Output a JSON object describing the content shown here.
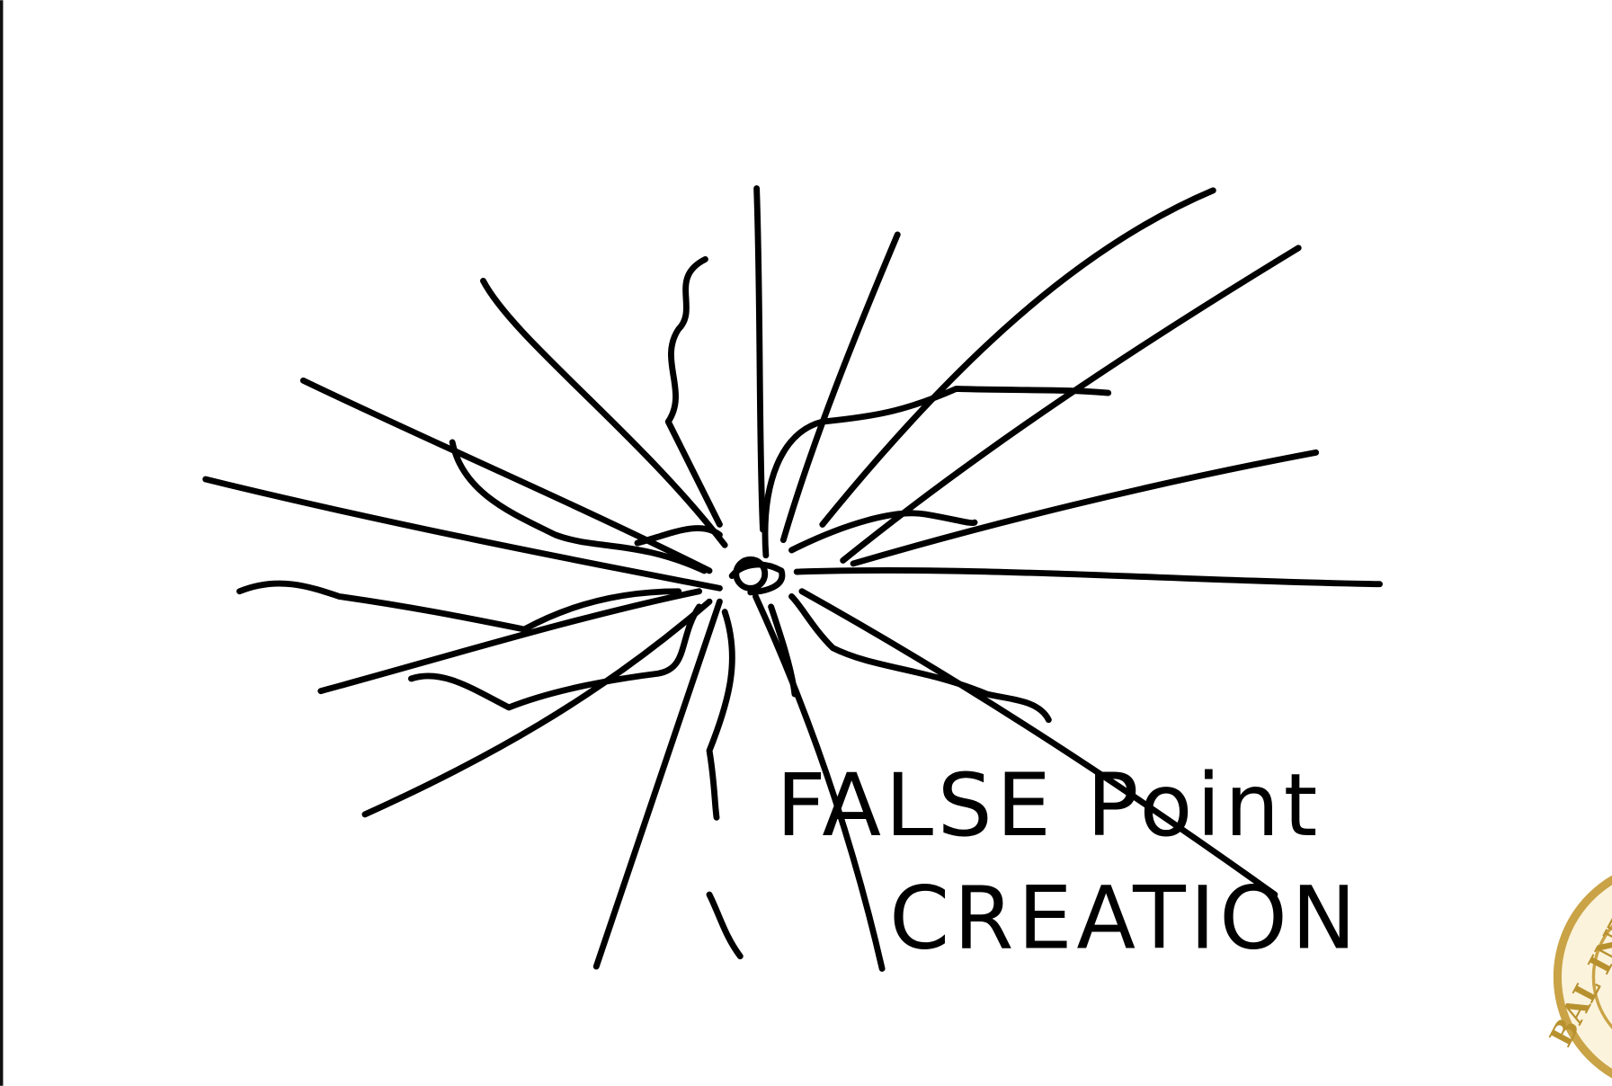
{
  "annotation": {
    "line1": "FALSE Point",
    "line2": "CREATION"
  },
  "seal": {
    "text": "BAL INTE"
  }
}
